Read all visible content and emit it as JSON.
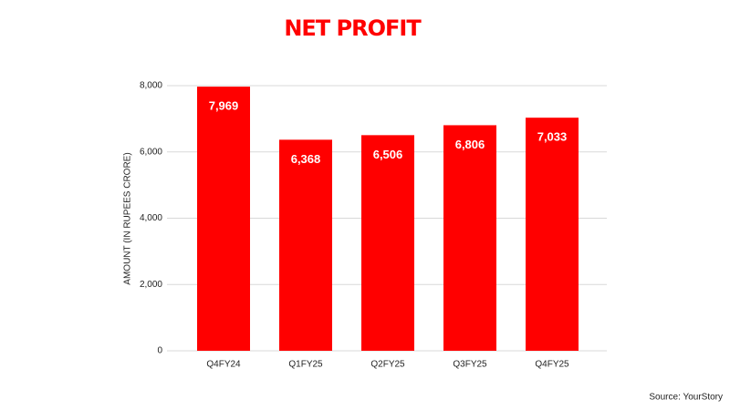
{
  "chart_data": {
    "type": "bar",
    "title": "NET PROFIT",
    "y_label": "AMOUNT (IN RUPEES CRORE)",
    "source": "Source: YourStory",
    "categories": [
      "Q4FY24",
      "Q1FY25",
      "Q2FY25",
      "Q3FY25",
      "Q4FY25"
    ],
    "values": [
      7969,
      6368,
      6506,
      6806,
      7033
    ],
    "value_labels": [
      "7,969",
      "6,368",
      "6,506",
      "6,806",
      "7,033"
    ],
    "color": "#ff0000",
    "ylim": [
      0,
      8000
    ],
    "yticks": [
      0,
      {
        "value": 2000,
        "label": "2,000"
      },
      {
        "value": 4000,
        "label": "4,000"
      },
      {
        "value": 6000,
        "label": "6,000"
      },
      {
        "value": 8000,
        "label": "8,000"
      }
    ],
    "grid": true
  }
}
